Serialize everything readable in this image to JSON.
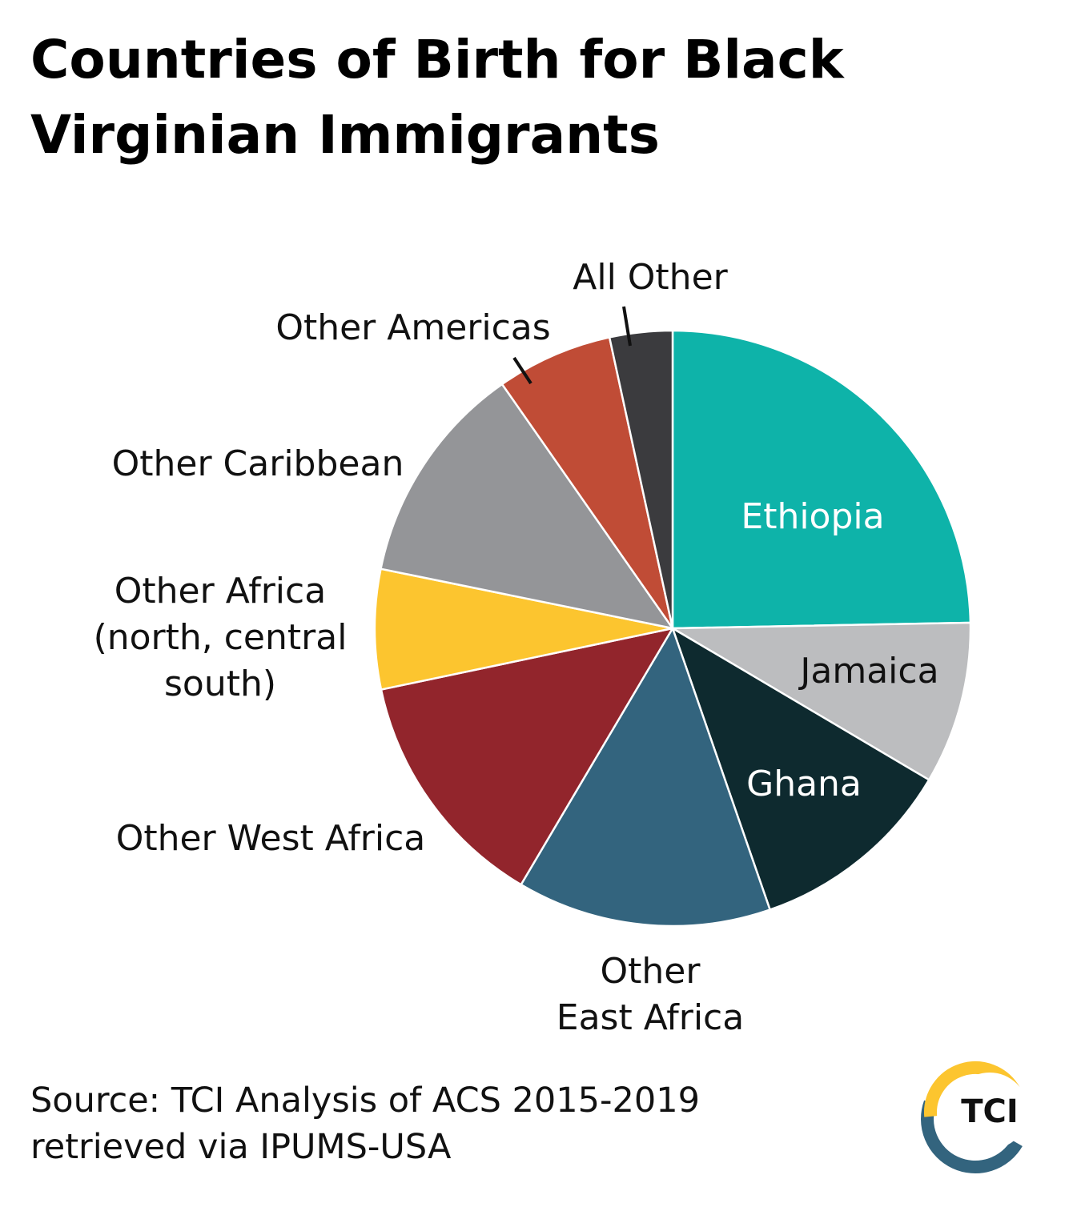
{
  "title_lines": [
    "Countries of Birth for Black",
    "Virginian Immigrants"
  ],
  "source_lines": [
    "Source: TCI Analysis of ACS 2015-2019",
    "retrieved via IPUMS-USA"
  ],
  "logo": {
    "text": "TCI",
    "colors": [
      "#fcc52f",
      "#33647e"
    ]
  },
  "chart_data": {
    "type": "pie",
    "title": "Countries of Birth for Black Virginian Immigrants",
    "start_angle_deg": 0,
    "direction": "clockwise",
    "slices": [
      {
        "label": "Ethiopia",
        "value": 24.7,
        "color": "#0eb3a9",
        "label_color": "#ffffff"
      },
      {
        "label": "Jamaica",
        "value": 8.8,
        "color": "#bcbdbf",
        "label_color": "#111111"
      },
      {
        "label": "Ghana",
        "value": 11.2,
        "color": "#0e2a2f",
        "label_color": "#ffffff"
      },
      {
        "label": "Other East Africa",
        "label_lines": [
          "Other",
          "East Africa"
        ],
        "value": 13.8,
        "color": "#33647e",
        "label_color": "#111111"
      },
      {
        "label": "Other West Africa",
        "value": 13.2,
        "color": "#92252c",
        "label_color": "#111111"
      },
      {
        "label": "Other Africa (north, central south)",
        "label_lines": [
          "Other Africa",
          "(north, central",
          "south)"
        ],
        "value": 6.5,
        "color": "#fcc52f",
        "label_color": "#111111"
      },
      {
        "label": "Other Caribbean",
        "value": 12.1,
        "color": "#949598",
        "label_color": "#111111"
      },
      {
        "label": "Other Americas",
        "value": 6.3,
        "color": "#c04c36",
        "label_color": "#111111"
      },
      {
        "label": "All Other",
        "value": 3.4,
        "color": "#3b3b3e",
        "label_color": "#111111"
      }
    ]
  }
}
